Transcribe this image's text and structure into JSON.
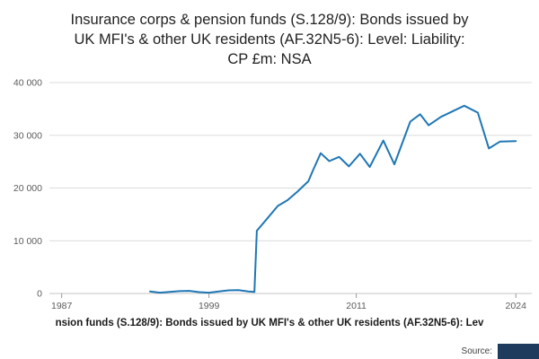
{
  "header": {
    "title_lines": [
      "Insurance corps & pension funds (S.128/9): Bonds issued by",
      "UK MFI's & other UK residents (AF.32N5-6): Level: Liability:",
      "CP £m: NSA"
    ]
  },
  "chart_data": {
    "type": "line",
    "title": "Insurance corps & pension funds (S.128/9): Bonds issued by UK MFI's & other UK residents (AF.32N5-6): Level: Liability: CP £m: NSA",
    "unit": "£m",
    "grid": "horizontal",
    "legend": "none",
    "line_color": "#1f77b4",
    "x_axis": {
      "min": 1986,
      "max": 2025.3,
      "ticks": [
        {
          "v": 1987,
          "label": "1987"
        },
        {
          "v": 1999,
          "label": "1999"
        },
        {
          "v": 2011,
          "label": "2011"
        },
        {
          "v": 2024,
          "label": "2024"
        }
      ]
    },
    "y_axis": {
      "min": 0,
      "max": 40000,
      "ticks": [
        {
          "v": 0,
          "label": "0"
        },
        {
          "v": 10000,
          "label": "10 000"
        },
        {
          "v": 20000,
          "label": "20 000"
        },
        {
          "v": 30000,
          "label": "30 000"
        },
        {
          "v": 40000,
          "label": "40 000"
        }
      ]
    },
    "series": [
      {
        "name": "Level: Liability: CP £m: NSA",
        "color": "#1f77b4",
        "points": [
          [
            1994.2,
            400
          ],
          [
            1995,
            150
          ],
          [
            1995.8,
            300
          ],
          [
            1996.6,
            450
          ],
          [
            1997.4,
            500
          ],
          [
            1998.2,
            250
          ],
          [
            1999,
            150
          ],
          [
            1999.8,
            400
          ],
          [
            2000.6,
            600
          ],
          [
            2001.4,
            650
          ],
          [
            2002.2,
            400
          ],
          [
            2002.7,
            300
          ],
          [
            2002.9,
            11900
          ],
          [
            2003.7,
            14100
          ],
          [
            2004.6,
            16600
          ],
          [
            2005.4,
            17700
          ],
          [
            2006.2,
            19300
          ],
          [
            2007.1,
            21300
          ],
          [
            2007.5,
            23500
          ],
          [
            2008.1,
            26600
          ],
          [
            2008.8,
            25100
          ],
          [
            2009.6,
            25900
          ],
          [
            2010.4,
            24100
          ],
          [
            2011.3,
            26500
          ],
          [
            2012.1,
            24000
          ],
          [
            2013.2,
            29000
          ],
          [
            2014.1,
            24500
          ],
          [
            2015.4,
            32600
          ],
          [
            2016.2,
            34000
          ],
          [
            2016.9,
            31900
          ],
          [
            2017.9,
            33500
          ],
          [
            2018.9,
            34600
          ],
          [
            2019.8,
            35600
          ],
          [
            2020.9,
            34300
          ],
          [
            2021.8,
            27500
          ],
          [
            2022.7,
            28800
          ],
          [
            2024,
            28900
          ]
        ]
      }
    ]
  },
  "footer": {
    "clipped_title": "nsion funds (S.128/9): Bonds issued by UK MFI's & other UK residents (AF.32N5-6): Lev",
    "source_label": "Source:",
    "logo_color": "#1e3a5c"
  }
}
